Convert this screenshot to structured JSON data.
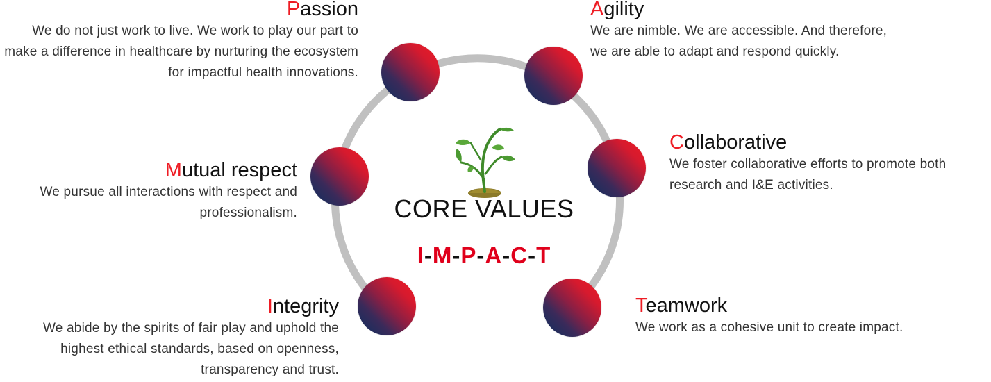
{
  "diagram": {
    "center": {
      "title": "CORE VALUES",
      "acronym": [
        "I",
        "M",
        "P",
        "A",
        "C",
        "T"
      ],
      "acronym_separator": "-"
    },
    "colors": {
      "accent_red": "#ee1c24",
      "accent_navy": "#0b2f5e",
      "ring_gray": "#c0c0c0",
      "text": "#111111"
    },
    "plant_icon": "sprout-icon",
    "values": [
      {
        "key": "passion",
        "initial": "P",
        "rest": "assion",
        "description": "We do not just work to live. We work to play our part to make a difference in healthcare by nurturing the ecosystem for impactful health innovations."
      },
      {
        "key": "agility",
        "initial": "A",
        "rest": "gility",
        "description": "We are nimble. We are accessible. And therefore, we are able to adapt and respond quickly."
      },
      {
        "key": "mutual-respect",
        "initial": "M",
        "rest": "utual respect",
        "description": "We pursue all interactions with respect and professionalism."
      },
      {
        "key": "collaborative",
        "initial": "C",
        "rest": "ollaborative",
        "description": "We foster collaborative efforts to promote both research and I&E activities."
      },
      {
        "key": "integrity",
        "initial": "I",
        "rest": "ntegrity",
        "description": "We abide by the spirits of fair play and uphold the highest ethical standards, based on openness, transparency and trust."
      },
      {
        "key": "teamwork",
        "initial": "T",
        "rest": "eamwork",
        "description": "We work as a cohesive unit to create impact."
      }
    ]
  }
}
